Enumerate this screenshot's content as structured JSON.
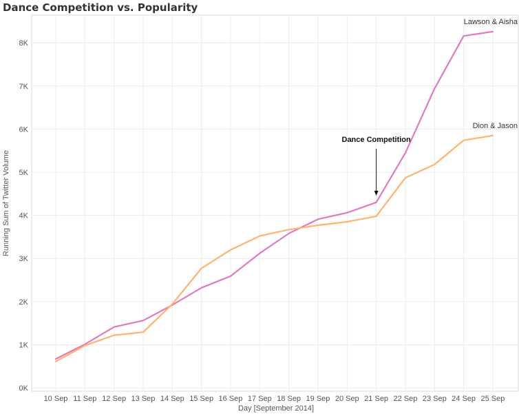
{
  "chart_data": {
    "type": "line",
    "title": "Dance Competition vs. Popularity",
    "xlabel": "Day [September 2014]",
    "ylabel": "Running Sum of Twitter Volume",
    "categories": [
      "10 Sep",
      "11 Sep",
      "12 Sep",
      "13 Sep",
      "14 Sep",
      "15 Sep",
      "16 Sep",
      "17 Sep",
      "18 Sep",
      "19 Sep",
      "20 Sep",
      "21 Sep",
      "22 Sep",
      "23 Sep",
      "24 Sep",
      "25 Sep"
    ],
    "yticks": [
      0,
      1000,
      2000,
      3000,
      4000,
      5000,
      6000,
      7000,
      8000
    ],
    "ytick_labels": [
      "0K",
      "1K",
      "2K",
      "3K",
      "4K",
      "5K",
      "6K",
      "7K",
      "8K"
    ],
    "ylim": [
      0,
      8600
    ],
    "grid": true,
    "series": [
      {
        "name": "Lawson & Aisha",
        "color": "#E377C2",
        "values": [
          670,
          1010,
          1410,
          1560,
          1920,
          2320,
          2590,
          3120,
          3580,
          3910,
          4060,
          4300,
          5450,
          6940,
          8160,
          8260
        ]
      },
      {
        "name": "Dion & Jason",
        "color": "#FFB36B",
        "values": [
          610,
          980,
          1220,
          1290,
          1940,
          2770,
          3200,
          3520,
          3670,
          3770,
          3850,
          3980,
          4870,
          5180,
          5740,
          5850
        ]
      }
    ],
    "annotations": [
      {
        "text": "Dance Competition",
        "x": "21 Sep",
        "target_value": 4300
      }
    ]
  }
}
